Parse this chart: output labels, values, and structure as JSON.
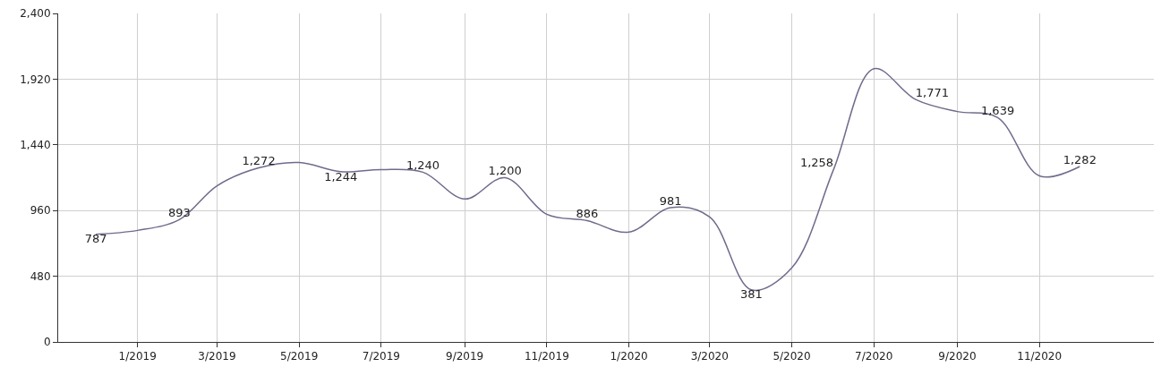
{
  "chart_data": {
    "type": "line",
    "x": [
      "2018-12",
      "2019-01",
      "2019-02",
      "2019-03",
      "2019-04",
      "2019-05",
      "2019-06",
      "2019-07",
      "2019-08",
      "2019-09",
      "2019-10",
      "2019-11",
      "2019-12",
      "2020-01",
      "2020-02",
      "2020-03",
      "2020-04",
      "2020-05",
      "2020-06",
      "2020-07",
      "2020-08",
      "2020-09",
      "2020-10",
      "2020-11",
      "2020-12"
    ],
    "series": [
      {
        "color": "#6e6c8c",
        "values": [
          787,
          815,
          893,
          1141,
          1272,
          1311,
          1244,
          1259,
          1240,
          1044,
          1200,
          933,
          886,
          802,
          981,
          913,
          381,
          541,
          1258,
          1996,
          1771,
          1683,
          1639,
          1213,
          1282
        ],
        "value_labels": [
          "787",
          null,
          "893",
          null,
          "1,272",
          null,
          "1,244",
          null,
          "1,240",
          null,
          "1,200",
          null,
          "886",
          null,
          "981",
          null,
          "381",
          null,
          "1,258",
          null,
          "1,771",
          null,
          "1,639",
          null,
          "1,282"
        ]
      }
    ],
    "xlim": [
      "2018-11-03",
      "2021-01-25"
    ],
    "xticks": [
      {
        "value": "2019-01-01",
        "label": "1/2019"
      },
      {
        "value": "2019-03-01",
        "label": "3/2019"
      },
      {
        "value": "2019-05-01",
        "label": "5/2019"
      },
      {
        "value": "2019-07-01",
        "label": "7/2019"
      },
      {
        "value": "2019-09-01",
        "label": "9/2019"
      },
      {
        "value": "2019-11-01",
        "label": "11/2019"
      },
      {
        "value": "2020-01-01",
        "label": "1/2020"
      },
      {
        "value": "2020-03-01",
        "label": "3/2020"
      },
      {
        "value": "2020-05-01",
        "label": "5/2020"
      },
      {
        "value": "2020-07-01",
        "label": "7/2020"
      },
      {
        "value": "2020-09-01",
        "label": "9/2020"
      },
      {
        "value": "2020-11-01",
        "label": "11/2020"
      }
    ],
    "ylim": [
      0,
      2400
    ],
    "yticks": [
      0,
      {
        "value": 480,
        "label": "480"
      },
      {
        "value": 960,
        "label": "960"
      },
      {
        "value": 1440,
        "label": "1,440"
      },
      {
        "value": 1920,
        "label": "1,920"
      },
      {
        "value": 2400,
        "label": "2,400"
      }
    ],
    "grid": true,
    "marker": "none",
    "line_style": "solid"
  }
}
